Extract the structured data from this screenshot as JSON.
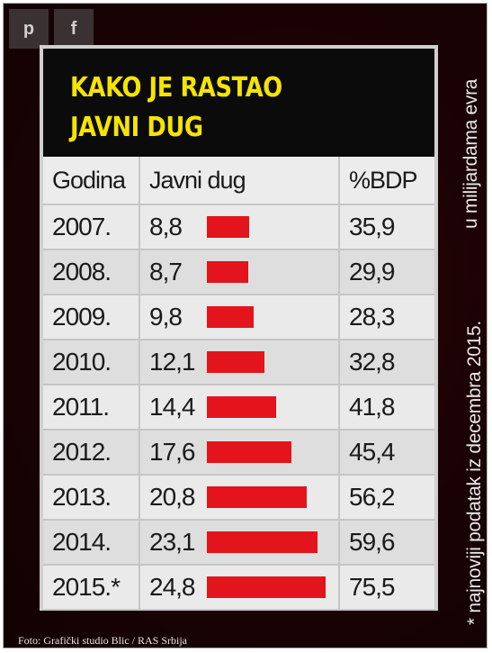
{
  "share": {
    "pinterest_icon": "p",
    "facebook_icon": "f"
  },
  "chart_data": {
    "type": "table",
    "title": "KAKO JE RASTAO JAVNI DUG",
    "title_lines": [
      "KAKO JE RASTAO",
      "JAVNI DUG"
    ],
    "columns": [
      "Godina",
      "Javni dug",
      "%BDP"
    ],
    "rows": [
      {
        "year": "2007.",
        "debt": "8,8",
        "debt_value": 8.8,
        "gdp": "35,9"
      },
      {
        "year": "2008.",
        "debt": "8,7",
        "debt_value": 8.7,
        "gdp": "29,9"
      },
      {
        "year": "2009.",
        "debt": "9,8",
        "debt_value": 9.8,
        "gdp": "28,3"
      },
      {
        "year": "2010.",
        "debt": "12,1",
        "debt_value": 12.1,
        "gdp": "32,8"
      },
      {
        "year": "2011.",
        "debt": "14,4",
        "debt_value": 14.4,
        "gdp": "41,8"
      },
      {
        "year": "2012.",
        "debt": "17,6",
        "debt_value": 17.6,
        "gdp": "45,4"
      },
      {
        "year": "2013.",
        "debt": "20,8",
        "debt_value": 20.8,
        "gdp": "56,2"
      },
      {
        "year": "2014.",
        "debt": "23,1",
        "debt_value": 23.1,
        "gdp": "59,6"
      },
      {
        "year": "2015.*",
        "debt": "24,8",
        "debt_value": 24.8,
        "gdp": "75,5"
      }
    ],
    "bar_color": "#e3141c",
    "unit_note": "u milijardama evra",
    "footnote": "* najnoviji podatak iz decembra 2015."
  },
  "photo_credit": "Foto: Grafički studio Blic / RAS Srbija"
}
